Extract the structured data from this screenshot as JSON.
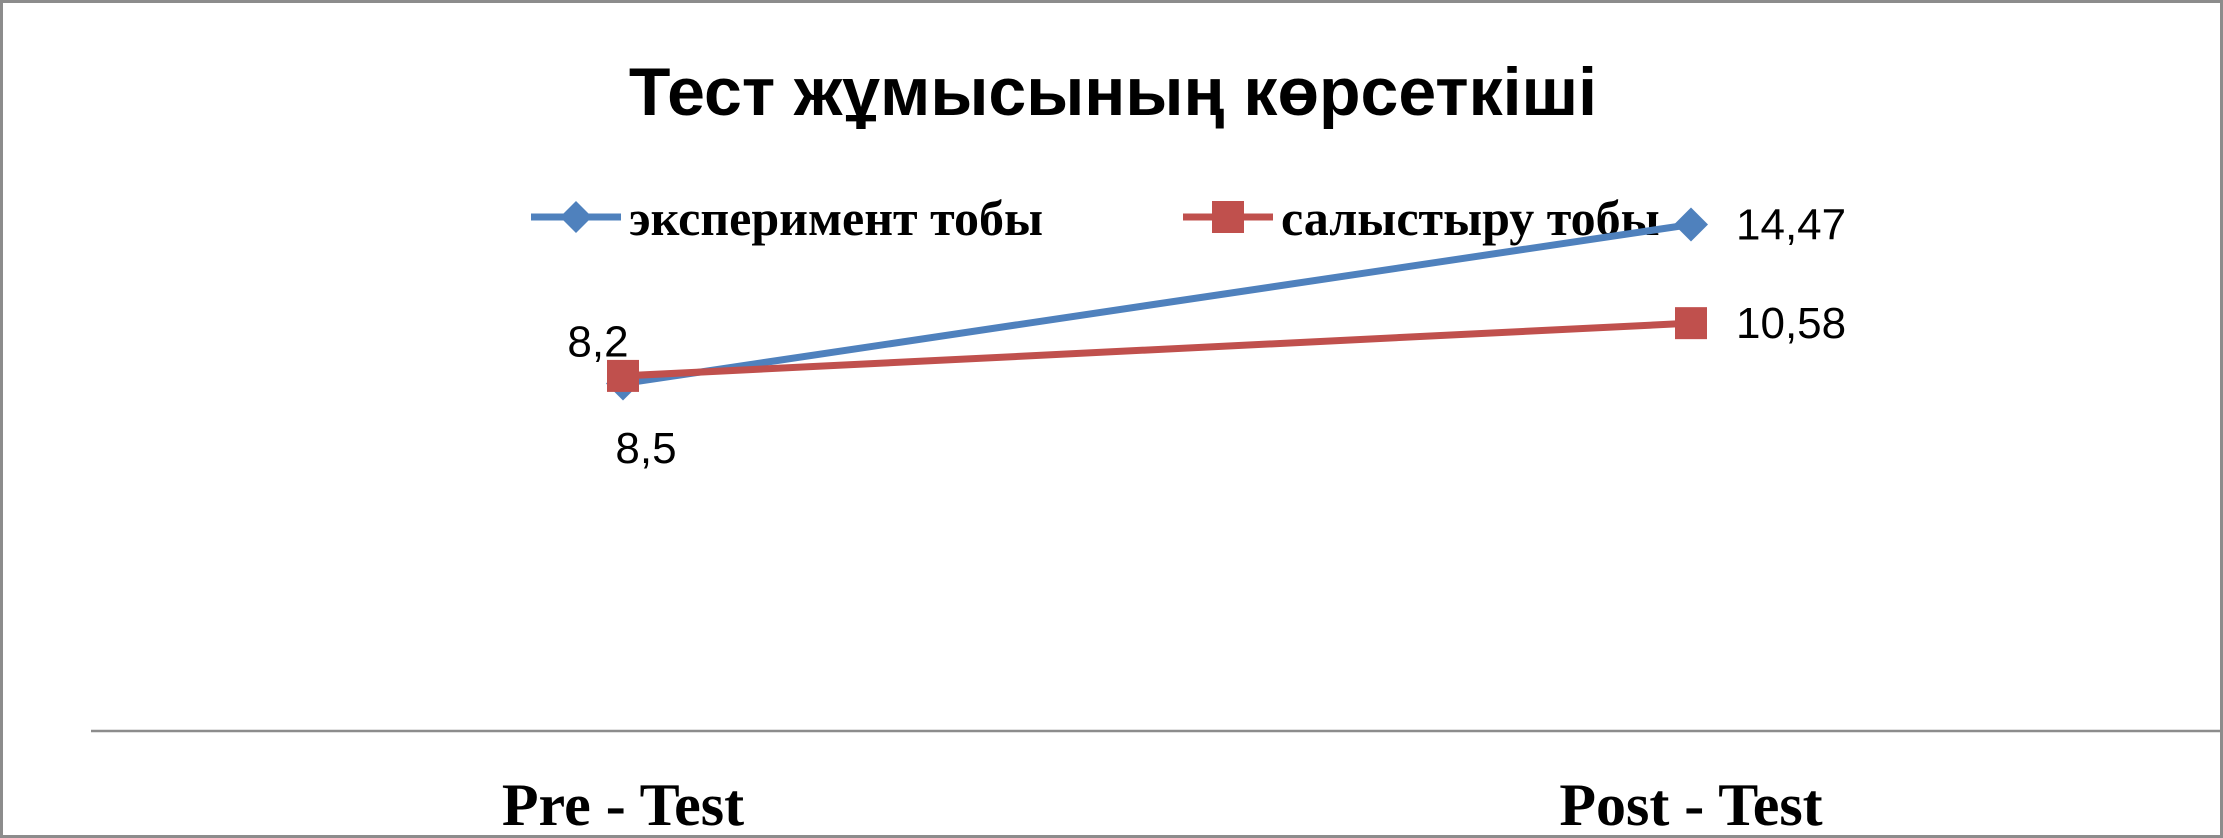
{
  "chart_data": {
    "type": "line",
    "title": "Тест жұмысының көрсеткіші",
    "categories": [
      "Pre - Test",
      "Post - Test"
    ],
    "series": [
      {
        "name": "эксперимент тобы",
        "values": [
          8.2,
          14.47
        ],
        "labels": [
          "8,2",
          "14,47"
        ],
        "color": "#4f81bd",
        "marker": "diamond"
      },
      {
        "name": "салыстыру тобы",
        "values": [
          8.5,
          10.58
        ],
        "labels": [
          "8,5",
          "10,58"
        ],
        "color": "#c0504d",
        "marker": "square"
      }
    ],
    "legend": "top",
    "grid": false,
    "ylim": [
      -5.5,
      16.5
    ]
  }
}
